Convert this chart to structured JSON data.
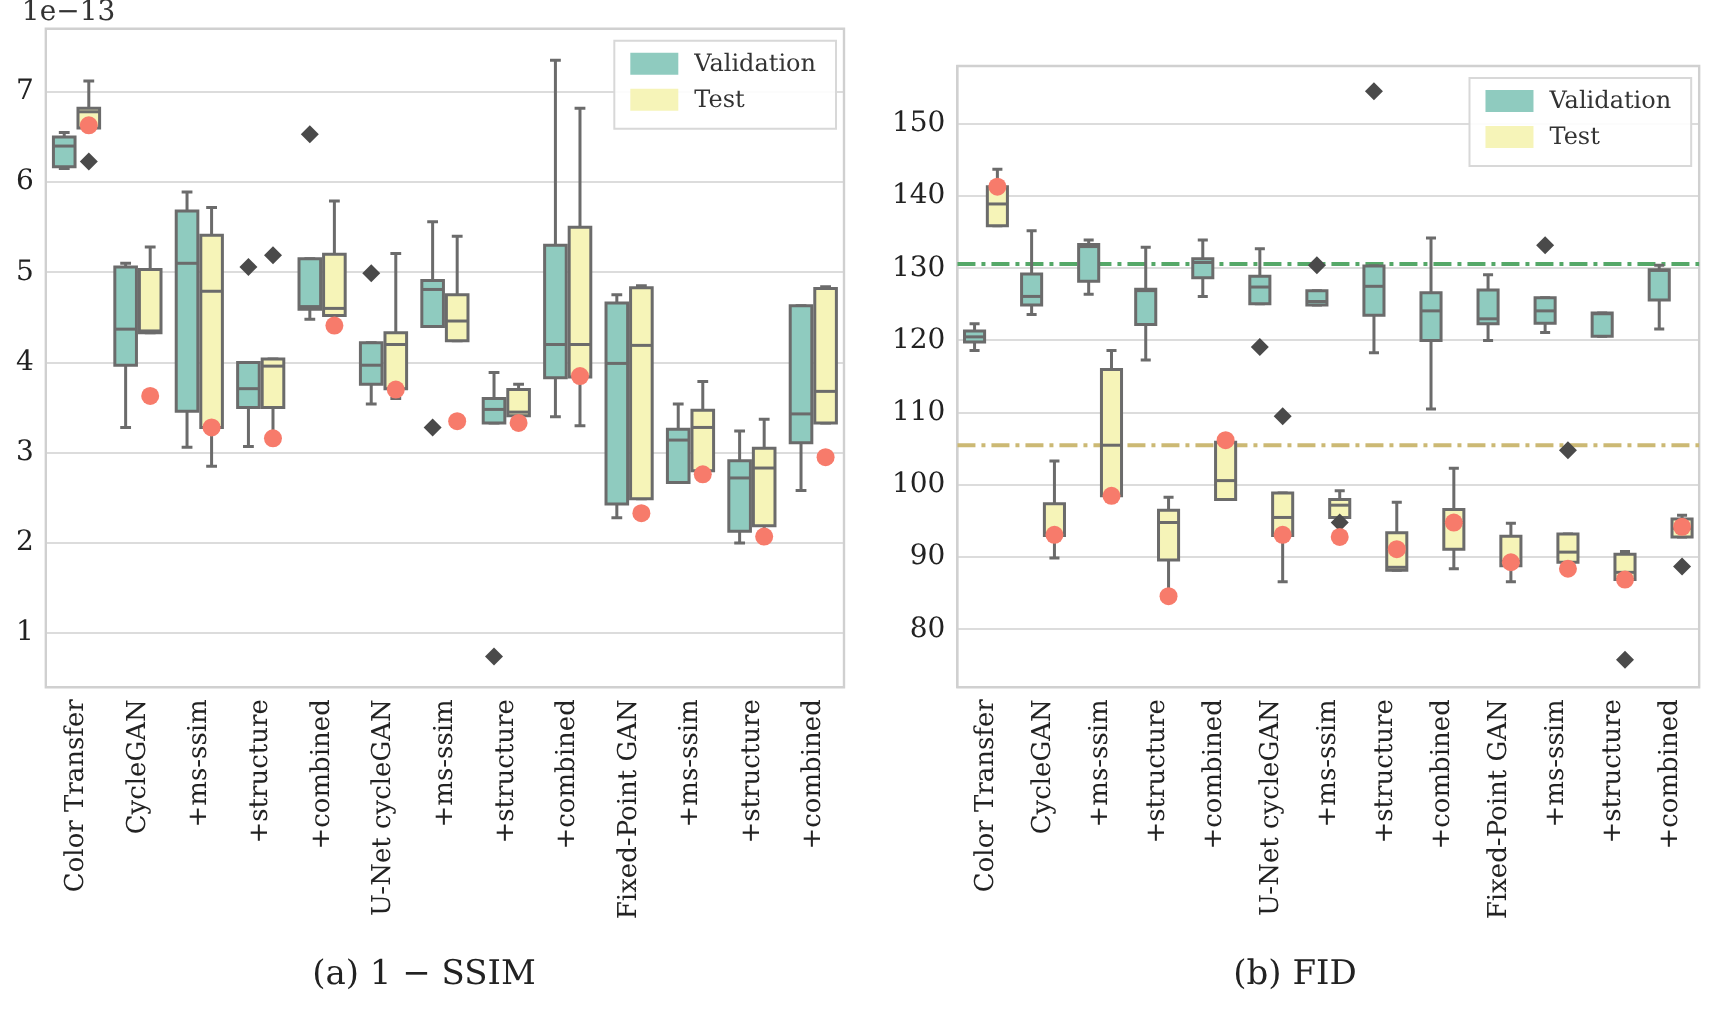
{
  "chart_data": [
    {
      "type": "box",
      "title": "(a) 1 − SSIM",
      "annotations": [
        "1e−13"
      ],
      "categories": [
        "Color Transfer",
        "CycleGAN",
        "+ms-ssim",
        "+structure",
        "+combined",
        "U-Net cycleGAN",
        "+ms-ssim",
        "+structure",
        "+combined",
        "Fixed-Point GAN",
        "+ms-ssim",
        "+structure",
        "+combined"
      ],
      "series": [
        {
          "name": "Validation",
          "color": "#8fcbbf",
          "boxes": [
            {
              "low": 6.15,
              "q1": 6.17,
              "median": 6.4,
              "q3": 6.5,
              "high": 6.55
            },
            {
              "low": 3.28,
              "q1": 3.97,
              "median": 4.37,
              "q3": 5.06,
              "high": 5.1
            },
            {
              "low": 3.06,
              "q1": 3.46,
              "median": 5.1,
              "q3": 5.68,
              "high": 5.89
            },
            {
              "low": 3.07,
              "q1": 3.5,
              "median": 3.71,
              "q3": 4.0,
              "high": 4.0,
              "outliers": [
                5.06
              ]
            },
            {
              "low": 4.48,
              "q1": 4.59,
              "median": 4.62,
              "q3": 5.15,
              "high": 5.15,
              "outliers": [
                6.53
              ]
            },
            {
              "low": 3.54,
              "q1": 3.76,
              "median": 3.97,
              "q3": 4.22,
              "high": 4.22,
              "outliers": [
                4.99
              ]
            },
            {
              "low": 4.4,
              "q1": 4.4,
              "median": 4.81,
              "q3": 4.91,
              "high": 5.56,
              "outliers": [
                3.28
              ]
            },
            {
              "low": 3.33,
              "q1": 3.33,
              "median": 3.48,
              "q3": 3.6,
              "high": 3.89,
              "outliers": [
                0.74
              ]
            },
            {
              "low": 3.4,
              "q1": 3.83,
              "median": 4.2,
              "q3": 5.3,
              "high": 7.35
            },
            {
              "low": 2.28,
              "q1": 2.43,
              "median": 3.99,
              "q3": 4.66,
              "high": 4.75
            },
            {
              "low": 2.67,
              "q1": 2.67,
              "median": 3.14,
              "q3": 3.26,
              "high": 3.54
            },
            {
              "low": 2.0,
              "q1": 2.13,
              "median": 2.72,
              "q3": 2.91,
              "high": 3.24
            },
            {
              "low": 2.58,
              "q1": 3.11,
              "median": 3.43,
              "q3": 4.63,
              "high": 4.63
            }
          ]
        },
        {
          "name": "Test",
          "color": "#f6f4b8",
          "boxes": [
            {
              "low": 6.6,
              "q1": 6.6,
              "median": 6.78,
              "q3": 6.82,
              "high": 7.12,
              "outliers": [
                6.23
              ]
            },
            {
              "low": 4.33,
              "q1": 4.33,
              "median": 4.35,
              "q3": 5.03,
              "high": 5.28
            },
            {
              "low": 2.85,
              "q1": 3.28,
              "median": 4.79,
              "q3": 5.41,
              "high": 5.72
            },
            {
              "low": 3.16,
              "q1": 3.5,
              "median": 3.96,
              "q3": 4.04,
              "high": 4.04,
              "outliers": [
                5.19
              ]
            },
            {
              "low": 4.52,
              "q1": 4.52,
              "median": 4.6,
              "q3": 5.2,
              "high": 5.79
            },
            {
              "low": 3.6,
              "q1": 3.71,
              "median": 4.2,
              "q3": 4.33,
              "high": 5.21
            },
            {
              "low": 4.24,
              "q1": 4.24,
              "median": 4.46,
              "q3": 4.75,
              "high": 5.4
            },
            {
              "low": 3.41,
              "q1": 3.41,
              "median": 3.45,
              "q3": 3.7,
              "high": 3.76
            },
            {
              "low": 3.3,
              "q1": 3.84,
              "median": 4.2,
              "q3": 5.5,
              "high": 6.82
            },
            {
              "low": 2.49,
              "q1": 2.49,
              "median": 4.19,
              "q3": 4.83,
              "high": 4.85
            },
            {
              "low": 2.8,
              "q1": 2.8,
              "median": 3.28,
              "q3": 3.47,
              "high": 3.79
            },
            {
              "low": 2.1,
              "q1": 2.19,
              "median": 2.83,
              "q3": 3.05,
              "high": 3.37
            },
            {
              "low": 3.33,
              "q1": 3.33,
              "median": 3.68,
              "q3": 4.82,
              "high": 4.84
            }
          ]
        },
        {
          "type": "scatter",
          "color": "#f77b6b",
          "values": [
            6.63,
            3.63,
            3.28,
            3.16,
            4.41,
            3.7,
            3.35,
            3.33,
            3.85,
            2.33,
            2.76,
            2.07,
            2.95
          ]
        }
      ],
      "ylim": [
        0.4,
        7.7
      ],
      "yticks": [
        1,
        2,
        3,
        4,
        5,
        6,
        7
      ],
      "grid": "y",
      "legend": "top right",
      "marker": "circle"
    },
    {
      "type": "box",
      "title": "(b) FID",
      "categories": [
        "Color Transfer",
        "CycleGAN",
        "+ms-ssim",
        "+structure",
        "+combined",
        "U-Net cycleGAN",
        "+ms-ssim",
        "+structure",
        "+combined",
        "Fixed-Point GAN",
        "+ms-ssim",
        "+structure",
        "+combined"
      ],
      "series": [
        {
          "name": "Validation",
          "color": "#8fcbbf",
          "boxes": [
            {
              "low": 118.6,
              "q1": 119.8,
              "median": 120.5,
              "q3": 121.3,
              "high": 122.3
            },
            {
              "low": 123.6,
              "q1": 124.9,
              "median": 126.1,
              "q3": 129.2,
              "high": 135.2
            },
            {
              "low": 126.4,
              "q1": 128.2,
              "median": 133.0,
              "q3": 133.3,
              "high": 133.9
            },
            {
              "low": 117.3,
              "q1": 122.2,
              "median": 126.9,
              "q3": 127.1,
              "high": 132.9
            },
            {
              "low": 126.1,
              "q1": 128.7,
              "median": 130.8,
              "q3": 131.3,
              "high": 133.9
            },
            {
              "low": 125.1,
              "q1": 125.1,
              "median": 127.4,
              "q3": 128.9,
              "high": 132.7,
              "outliers": [
                119.1
              ]
            },
            {
              "low": 124.9,
              "q1": 124.9,
              "median": 125.4,
              "q3": 126.9,
              "high": 126.9,
              "outliers": [
                130.4
              ]
            },
            {
              "low": 118.3,
              "q1": 123.5,
              "median": 127.5,
              "q3": 130.3,
              "high": 130.3,
              "outliers": [
                154.5
              ]
            },
            {
              "low": 110.5,
              "q1": 120.0,
              "median": 124.1,
              "q3": 126.6,
              "high": 134.2
            },
            {
              "low": 120.0,
              "q1": 122.3,
              "median": 123.0,
              "q3": 127.0,
              "high": 129.1
            },
            {
              "low": 121.1,
              "q1": 122.4,
              "median": 124.1,
              "q3": 125.9,
              "high": 125.9,
              "outliers": [
                133.2
              ]
            },
            {
              "low": 120.6,
              "q1": 120.6,
              "median": 123.7,
              "q3": 123.8,
              "high": 123.8
            },
            {
              "low": 121.6,
              "q1": 125.6,
              "median": 129.7,
              "q3": 129.8,
              "high": 130.4
            }
          ]
        },
        {
          "name": "Test",
          "color": "#f6f4b8",
          "boxes": [
            {
              "low": 135.9,
              "q1": 135.9,
              "median": 138.9,
              "q3": 141.3,
              "high": 143.7
            },
            {
              "low": 89.9,
              "q1": 93.0,
              "median": 93.2,
              "q3": 97.4,
              "high": 103.3
            },
            {
              "low": 98.5,
              "q1": 98.5,
              "median": 105.5,
              "q3": 116.0,
              "high": 118.6
            },
            {
              "low": 84.6,
              "q1": 89.6,
              "median": 94.8,
              "q3": 96.5,
              "high": 98.3
            },
            {
              "low": 98.0,
              "q1": 98.0,
              "median": 100.6,
              "q3": 105.9,
              "high": 105.9
            },
            {
              "low": 86.6,
              "q1": 93.0,
              "median": 95.5,
              "q3": 98.9,
              "high": 98.9,
              "outliers": [
                109.5
              ]
            },
            {
              "low": 95.5,
              "q1": 95.5,
              "median": 97.2,
              "q3": 98.0,
              "high": 99.2,
              "outliers": [
                94.8
              ]
            },
            {
              "low": 88.2,
              "q1": 88.2,
              "median": 88.6,
              "q3": 93.4,
              "high": 97.6
            },
            {
              "low": 88.4,
              "q1": 91.1,
              "median": 94.8,
              "q3": 96.6,
              "high": 102.3
            },
            {
              "low": 86.6,
              "q1": 88.8,
              "median": 89.4,
              "q3": 92.9,
              "high": 94.7
            },
            {
              "low": 89.3,
              "q1": 89.3,
              "median": 90.7,
              "q3": 93.2,
              "high": 93.2,
              "outliers": [
                104.8
              ]
            },
            {
              "low": 86.9,
              "q1": 86.9,
              "median": 87.9,
              "q3": 90.4,
              "high": 90.8,
              "outliers": [
                75.8
              ]
            },
            {
              "low": 92.8,
              "q1": 92.8,
              "median": 94.0,
              "q3": 95.3,
              "high": 95.8,
              "outliers": [
                88.7
              ]
            }
          ]
        },
        {
          "type": "scatter",
          "color": "#f77b6b",
          "values": [
            141.3,
            93.1,
            98.5,
            84.6,
            106.2,
            93.1,
            92.8,
            91.1,
            94.8,
            89.3,
            88.4,
            86.9,
            94.2
          ]
        }
      ],
      "ref_lines": [
        {
          "axis": "y",
          "value": 130.6,
          "color": "#55a868",
          "line_style": "dashdot"
        },
        {
          "axis": "y",
          "value": 105.5,
          "color": "#ccb974",
          "line_style": "dashdot"
        }
      ],
      "ylim": [
        72,
        158
      ],
      "yticks": [
        80,
        90,
        100,
        110,
        120,
        130,
        140,
        150
      ],
      "grid": "y",
      "legend": "top right",
      "marker": "circle"
    }
  ]
}
